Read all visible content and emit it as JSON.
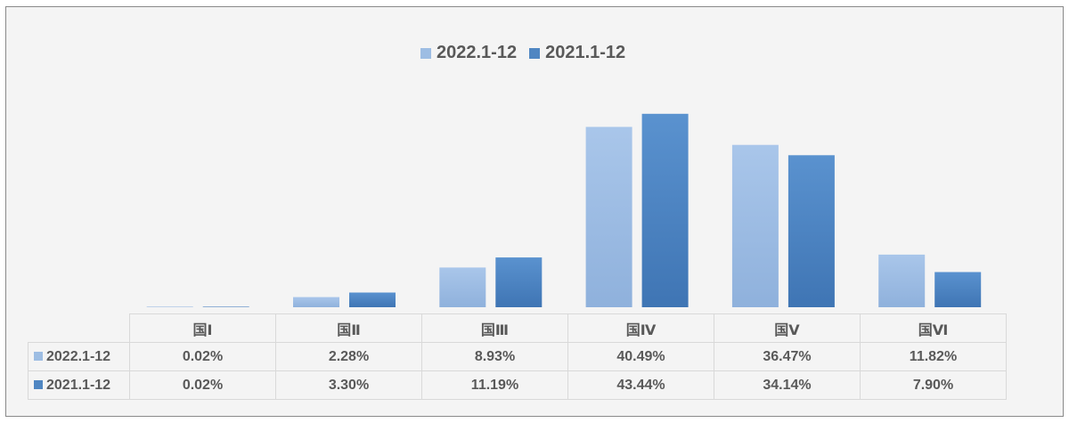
{
  "chart_data": {
    "type": "bar",
    "categories": [
      "国Ⅰ",
      "国Ⅱ",
      "国Ⅲ",
      "国Ⅳ",
      "国Ⅴ",
      "国Ⅵ"
    ],
    "series": [
      {
        "name": "2022.1-12",
        "values": [
          0.02,
          2.28,
          8.93,
          40.49,
          36.47,
          11.82
        ],
        "labels": [
          "0.02%",
          "2.28%",
          "8.93%",
          "40.49%",
          "36.47%",
          "11.82%"
        ],
        "color": "#9dbde3"
      },
      {
        "name": "2021.1-12",
        "values": [
          0.02,
          3.3,
          11.19,
          43.44,
          34.14,
          7.9
        ],
        "labels": [
          "0.02%",
          "3.30%",
          "11.19%",
          "43.44%",
          "34.14%",
          "7.90%"
        ],
        "color": "#4f86c2"
      }
    ],
    "title": "",
    "xlabel": "",
    "ylabel": "",
    "ylim": [
      0,
      45
    ],
    "grid": false,
    "legend_position": "top-center",
    "data_table": true
  }
}
